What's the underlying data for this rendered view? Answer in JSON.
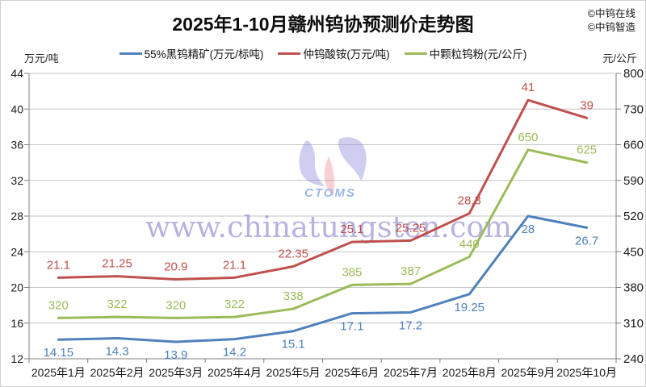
{
  "copyright": {
    "line1": "©中钨在线",
    "line2": "©中钨智造"
  },
  "watermark": {
    "url_text": "www.chinatungsten.com",
    "logo_caption": "CTOMS",
    "url_color": "#7d74c8",
    "logo_lavender": "#8c87dc",
    "logo_pink": "#f096a0",
    "caption_color": "#9bb9e6"
  },
  "chart_data": {
    "type": "line",
    "title": "2025年1-10月赣州钨协预测价走势图",
    "categories": [
      "2025年1月",
      "2025年2月",
      "2025年3月",
      "2025年4月",
      "2025年5月",
      "2025年6月",
      "2025年7月",
      "2025年8月",
      "2025年9月",
      "2025年10月"
    ],
    "left_axis": {
      "unit": "万元/吨",
      "min": 12,
      "max": 44,
      "step": 4,
      "ticks": [
        44,
        40,
        36,
        32,
        28,
        24,
        20,
        16,
        12
      ]
    },
    "right_axis": {
      "unit": "元/公斤",
      "min": 240,
      "max": 800,
      "step": 70,
      "ticks": [
        800,
        730,
        660,
        590,
        520,
        450,
        380,
        310,
        240
      ]
    },
    "grid": true,
    "legend_position": "top",
    "gridline_color": "#c3c3c3",
    "axis_color": "#808080",
    "series": [
      {
        "name": "55%黑钨精矿(万元/标吨)",
        "color": "#4F81BD",
        "axis": "left",
        "label_side": "below",
        "values": [
          14.15,
          14.3,
          13.9,
          14.2,
          15.1,
          17.1,
          17.2,
          19.25,
          28,
          26.7
        ]
      },
      {
        "name": "仲钨酸铵(万元/吨)",
        "color": "#C0504D",
        "axis": "left",
        "label_side": "above",
        "values": [
          21.1,
          21.25,
          20.9,
          21.1,
          22.35,
          25.1,
          25.25,
          28.3,
          41,
          39
        ]
      },
      {
        "name": "中颗粒钨粉(元/公斤)",
        "color": "#9BBB59",
        "axis": "right",
        "label_side": "above",
        "values": [
          320,
          322,
          320,
          322,
          338,
          385,
          387,
          440,
          650,
          625
        ]
      }
    ]
  }
}
